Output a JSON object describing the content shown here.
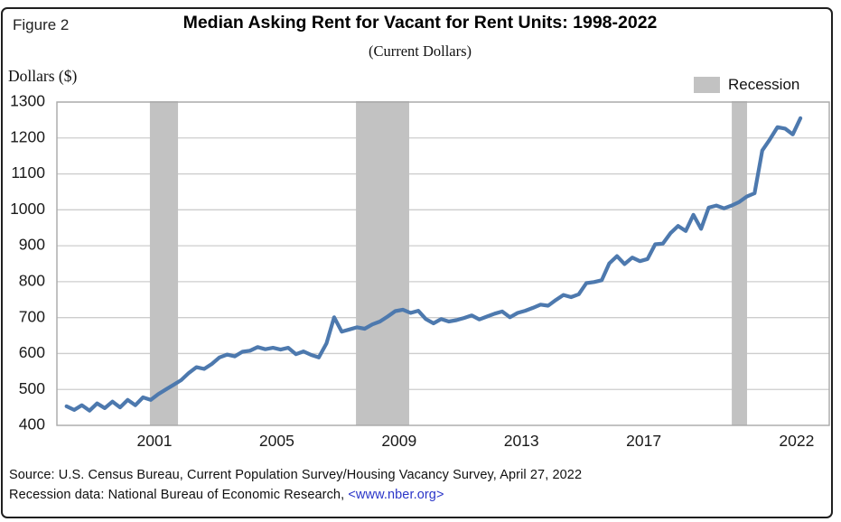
{
  "figure_label": "Figure 2",
  "title": "Median Asking Rent for Vacant for Rent Units: 1998-2022",
  "subtitle": "(Current Dollars)",
  "y_axis_unit_label": "Dollars ($)",
  "legend": {
    "recession_label": "Recession"
  },
  "source": {
    "line1": "Source: U.S. Census Bureau, Current Population Survey/Housing Vacancy Survey, April 27, 2022",
    "line2_prefix": "Recession data: National Bureau of Economic Research, ",
    "line2_link": "<www.nber.org>"
  },
  "colors": {
    "line": "#4d79ae",
    "recession_fill": "#c2c2c2",
    "gridline": "#cdcdcd",
    "plot_border": "#a9a9a9",
    "link": "#2a35c8",
    "text": "#1a1a1a"
  },
  "chart_data": {
    "type": "line",
    "title": "Median Asking Rent for Vacant for Rent Units: 1998-2022",
    "subtitle": "(Current Dollars)",
    "ylabel": "Dollars ($)",
    "xlabel": "",
    "grid": "horizontal",
    "legend_position": "top-right",
    "ylim": [
      400,
      1300
    ],
    "xlim": [
      1997.8,
      2023.1
    ],
    "y_ticks": [
      400,
      500,
      600,
      700,
      800,
      900,
      1000,
      1100,
      1200,
      1300
    ],
    "x_ticks": [
      2001,
      2005,
      2009,
      2013,
      2017,
      2022
    ],
    "x_start_year": 1998,
    "x_step_years": 0.25,
    "frequency": "quarterly",
    "recessions": [
      {
        "start": 2000.85,
        "end": 2001.77
      },
      {
        "start": 2007.59,
        "end": 2009.33
      },
      {
        "start": 2019.88,
        "end": 2020.38
      }
    ],
    "series": [
      {
        "name": "Median asking rent (current dollars)",
        "values": [
          453,
          443,
          456,
          441,
          461,
          448,
          466,
          450,
          471,
          456,
          478,
          471,
          487,
          500,
          513,
          526,
          546,
          562,
          557,
          571,
          589,
          597,
          592,
          605,
          608,
          618,
          612,
          616,
          611,
          616,
          598,
          606,
          596,
          589,
          628,
          701,
          661,
          667,
          673,
          669,
          681,
          689,
          703,
          718,
          722,
          713,
          719,
          696,
          684,
          696,
          689,
          693,
          699,
          706,
          695,
          703,
          711,
          717,
          701,
          713,
          719,
          727,
          736,
          733,
          749,
          763,
          757,
          765,
          796,
          799,
          804,
          851,
          871,
          849,
          867,
          857,
          863,
          904,
          906,
          935,
          955,
          941,
          986,
          947,
          1006,
          1012,
          1004,
          1012,
          1022,
          1037,
          1046,
          1165,
          1196,
          1230,
          1226,
          1210,
          1255
        ]
      }
    ]
  }
}
